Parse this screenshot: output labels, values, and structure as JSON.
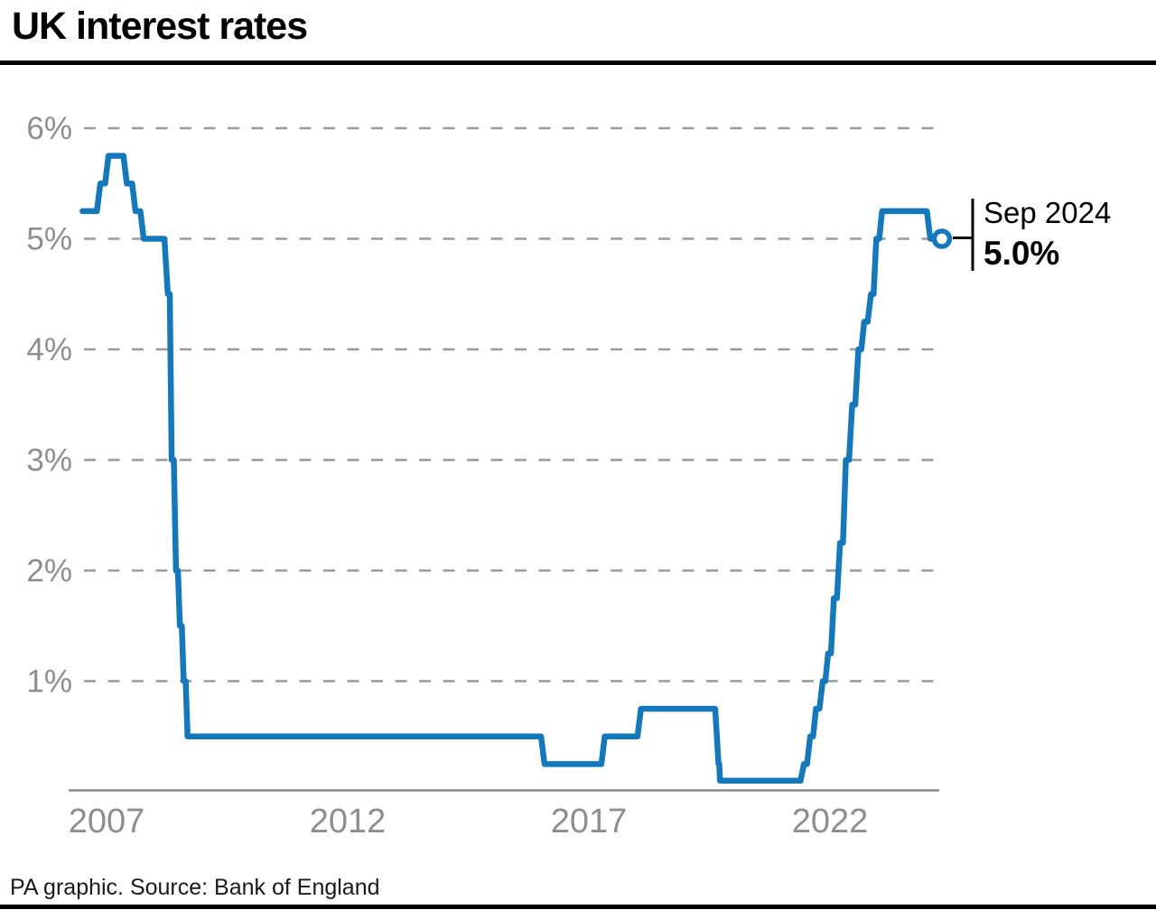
{
  "page": {
    "title": "UK interest rates",
    "source_note": "PA graphic. Source: Bank of England"
  },
  "colors": {
    "line": "#1478ba",
    "grid": "#9a9a9a",
    "tick_label": "#8e8e8e",
    "axis": "#8a8a8a",
    "annotation": "#000000",
    "rule": "#000000",
    "background": "#ffffff"
  },
  "chart_data": {
    "type": "line",
    "title": "UK interest rates",
    "xlabel": "",
    "ylabel": "",
    "grid": "horizontal-dashed",
    "legend": "none",
    "xlim": [
      2006.9,
      2025.1
    ],
    "ylim": [
      0,
      6.3
    ],
    "x_ticks": [
      {
        "label": "2007",
        "year": 2007.5
      },
      {
        "label": "2012",
        "year": 2012.5
      },
      {
        "label": "2017",
        "year": 2017.5
      },
      {
        "label": "2022",
        "year": 2022.5
      }
    ],
    "y_ticks": [
      {
        "label": "6%",
        "value": 6
      },
      {
        "label": "5%",
        "value": 5
      },
      {
        "label": "4%",
        "value": 4
      },
      {
        "label": "3%",
        "value": 3
      },
      {
        "label": "2%",
        "value": 2
      },
      {
        "label": "1%",
        "value": 1
      }
    ],
    "series": [
      {
        "name": "UK interest rate",
        "points": [
          [
            2007.0,
            5.25
          ],
          [
            2007.37,
            5.5
          ],
          [
            2007.54,
            5.75
          ],
          [
            2007.92,
            5.5
          ],
          [
            2008.1,
            5.25
          ],
          [
            2008.27,
            5.0
          ],
          [
            2008.77,
            4.5
          ],
          [
            2008.85,
            3.0
          ],
          [
            2008.94,
            2.0
          ],
          [
            2009.02,
            1.5
          ],
          [
            2009.1,
            1.0
          ],
          [
            2009.18,
            0.5
          ],
          [
            2016.58,
            0.25
          ],
          [
            2017.83,
            0.5
          ],
          [
            2018.58,
            0.75
          ],
          [
            2020.19,
            0.25
          ],
          [
            2020.22,
            0.1
          ],
          [
            2021.96,
            0.25
          ],
          [
            2022.09,
            0.5
          ],
          [
            2022.21,
            0.75
          ],
          [
            2022.35,
            1.0
          ],
          [
            2022.46,
            1.25
          ],
          [
            2022.58,
            1.75
          ],
          [
            2022.71,
            2.25
          ],
          [
            2022.83,
            3.0
          ],
          [
            2022.96,
            3.5
          ],
          [
            2023.09,
            4.0
          ],
          [
            2023.21,
            4.25
          ],
          [
            2023.35,
            4.5
          ],
          [
            2023.46,
            5.0
          ],
          [
            2023.58,
            5.25
          ],
          [
            2024.58,
            5.0
          ],
          [
            2024.82,
            5.0
          ]
        ]
      }
    ],
    "endpoint": {
      "label": "Sep 2024",
      "value_label": "5.0%",
      "x": 2024.82,
      "y": 5.0
    }
  }
}
